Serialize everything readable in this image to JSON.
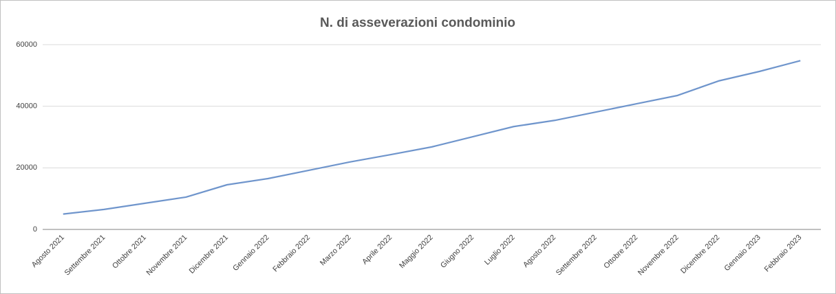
{
  "chart_data": {
    "type": "line",
    "title": "N. di asseverazioni condominio",
    "categories": [
      "Agosto 2021",
      "Settembre 2021",
      "Ottobre 2021",
      "Novembre 2021",
      "Dicembre 2021",
      "Gennaio 2022",
      "Febbraio 2022",
      "Marzo 2022",
      "Aprile 2022",
      "Maggio 2022",
      "Giugno 2022",
      "Luglio 2022",
      "Agosto 2022",
      "Settembre 2022",
      "Ottobre 2022",
      "Novembre 2022",
      "Dicembre 2022",
      "Gennaio 2023",
      "Febbraio 2023"
    ],
    "series": [
      {
        "name": "N. di asseverazioni condominio",
        "color": "#6f95cc",
        "values": [
          5000,
          6500,
          8500,
          10500,
          14500,
          16500,
          19200,
          21900,
          24300,
          26800,
          30100,
          33400,
          35400,
          38100,
          40800,
          43500,
          48200,
          51300,
          54800
        ]
      }
    ],
    "ylim": [
      0,
      60000
    ],
    "yticks": [
      0,
      20000,
      40000,
      60000
    ],
    "grid": true
  }
}
